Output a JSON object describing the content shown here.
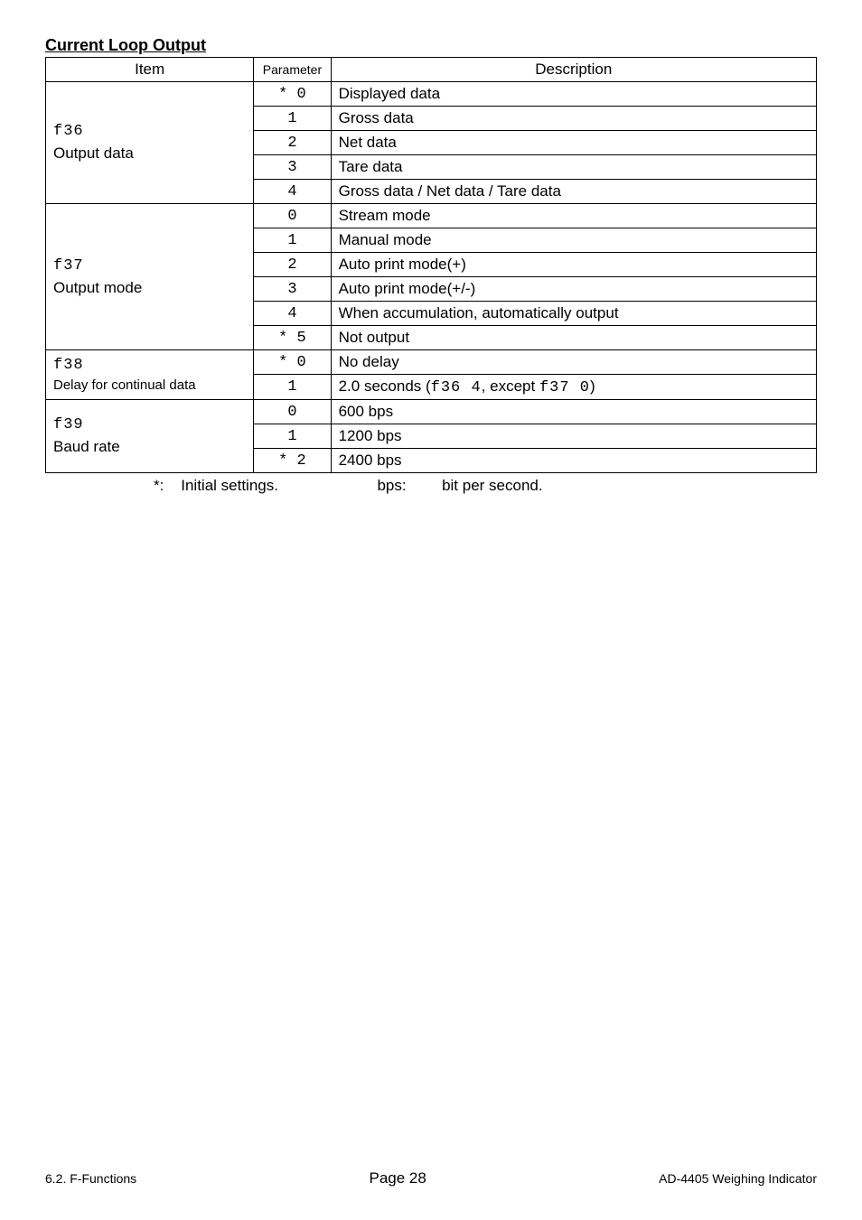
{
  "heading": "Current Loop Output",
  "tableHeaders": {
    "item": "Item",
    "parameter": "Parameter",
    "description": "Description"
  },
  "rows": [
    {
      "itemCode": "f36",
      "itemLabel": "Output data",
      "params": [
        {
          "param": "* 0",
          "desc": "Displayed data"
        },
        {
          "param": "1",
          "desc": "Gross data"
        },
        {
          "param": "2",
          "desc": "Net data"
        },
        {
          "param": "3",
          "desc": "Tare data"
        },
        {
          "param": "4",
          "desc": "Gross data / Net data / Tare data"
        }
      ]
    },
    {
      "itemCode": "f37",
      "itemLabel": "Output mode",
      "params": [
        {
          "param": "0",
          "desc": "Stream mode"
        },
        {
          "param": "1",
          "desc": "Manual mode"
        },
        {
          "param": "2",
          "desc": "Auto print mode(+)"
        },
        {
          "param": "3",
          "desc": "Auto print mode(+/-)"
        },
        {
          "param": "4",
          "desc": "When accumulation, automatically output"
        },
        {
          "param": "* 5",
          "desc": "Not output"
        }
      ]
    },
    {
      "itemCode": "f38",
      "itemLabel": "Delay for continual data",
      "itemLabelSmall": true,
      "params": [
        {
          "param": "* 0",
          "desc": "No delay"
        },
        {
          "param": "1",
          "desc_prefix": "2.0 seconds (",
          "desc_seg1": "f36  4",
          "desc_mid": ", except ",
          "desc_seg2": "f37  0",
          "desc_suffix": ")"
        }
      ]
    },
    {
      "itemCode": "f39",
      "itemLabel": "Baud rate",
      "params": [
        {
          "param": "0",
          "desc": " 600 bps"
        },
        {
          "param": "1",
          "desc": "1200 bps"
        },
        {
          "param": "* 2",
          "desc": "2400 bps"
        }
      ]
    }
  ],
  "note": {
    "star": "*:",
    "initial": "Initial settings.",
    "bps": "bps:",
    "bpsDesc": "bit per second."
  },
  "footer": {
    "left": "6.2. F-Functions",
    "center": "Page 28",
    "right": "AD-4405 Weighing Indicator"
  }
}
